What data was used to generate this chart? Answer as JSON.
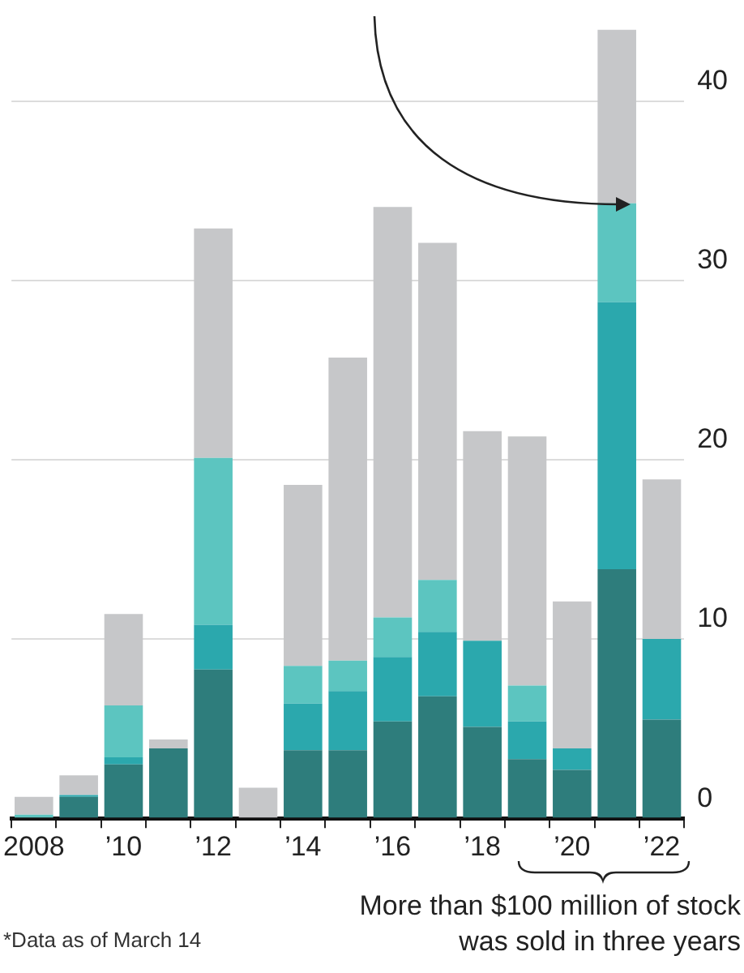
{
  "chart_data": {
    "type": "bar",
    "stacked": true,
    "categories": [
      "2008",
      null,
      "’10",
      null,
      "’12",
      null,
      "’14",
      null,
      "’16",
      null,
      "’18",
      null,
      "’20",
      null,
      "’22"
    ],
    "series": [
      {
        "color": "#2e7d7c",
        "values": [
          0,
          1.2,
          3.0,
          3.9,
          8.3,
          0,
          3.8,
          3.8,
          5.4,
          6.8,
          5.1,
          3.3,
          2.7,
          13.9,
          5.5
        ]
      },
      {
        "color": "#2ba8ad",
        "values": [
          0,
          0.1,
          0.4,
          0,
          2.5,
          0,
          2.6,
          3.3,
          3.6,
          3.6,
          4.8,
          2.1,
          1.2,
          14.9,
          4.5
        ]
      },
      {
        "color": "#5cc5c0",
        "values": [
          0.2,
          0,
          2.9,
          0,
          9.3,
          0,
          2.1,
          1.7,
          2.2,
          2.9,
          0,
          2.0,
          0,
          5.5,
          0
        ]
      },
      {
        "color": "#c6c7c9",
        "values": [
          1.0,
          1.1,
          5.1,
          0.5,
          12.8,
          1.7,
          10.1,
          16.9,
          22.9,
          18.8,
          11.7,
          13.9,
          8.2,
          9.7,
          8.9
        ]
      }
    ],
    "ylim": [
      0,
      44
    ],
    "yticks": [
      0,
      10,
      20,
      30,
      40
    ],
    "grid": "y",
    "legend": false,
    "annotations": [
      "More than $100 million of stock was sold in three years",
      "*Data as of March 14"
    ]
  }
}
